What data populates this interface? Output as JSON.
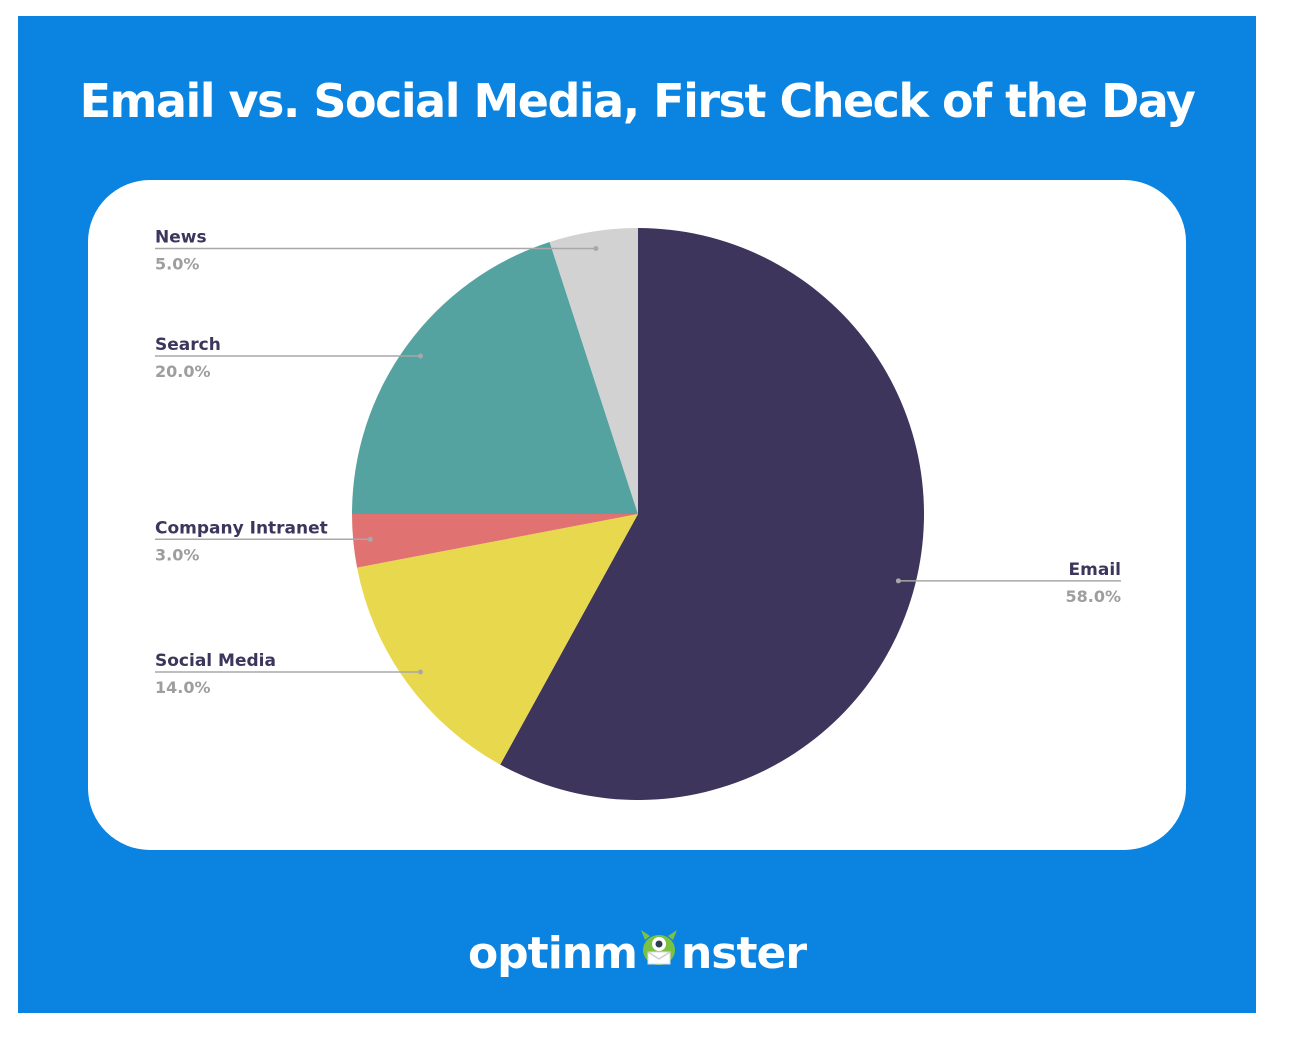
{
  "title": "Email vs. Social Media, First Check of the Day",
  "logo": {
    "text_left": "optinm",
    "text_right": "nster",
    "mascot_icon": "monster-mascot-icon"
  },
  "colors": {
    "background": "#0a84e0",
    "card": "#ffffff",
    "label": "#3d355c",
    "value": "#9e9e9e",
    "leader": "#a8a8a8"
  },
  "chart_data": {
    "type": "pie",
    "title": "Email vs. Social Media, First Check of the Day",
    "start_angle_deg": 0,
    "direction": "clockwise",
    "slices": [
      {
        "label": "Email",
        "value": 58.0,
        "display": "58.0%",
        "color": "#3d355c",
        "label_side": "right"
      },
      {
        "label": "Social Media",
        "value": 14.0,
        "display": "14.0%",
        "color": "#e8d84e",
        "label_side": "left"
      },
      {
        "label": "Company Intranet",
        "value": 3.0,
        "display": "3.0%",
        "color": "#e07272",
        "label_side": "left"
      },
      {
        "label": "Search",
        "value": 20.0,
        "display": "20.0%",
        "color": "#55a3a1",
        "label_side": "left"
      },
      {
        "label": "News",
        "value": 5.0,
        "display": "5.0%",
        "color": "#d2d2d2",
        "label_side": "left"
      }
    ]
  }
}
